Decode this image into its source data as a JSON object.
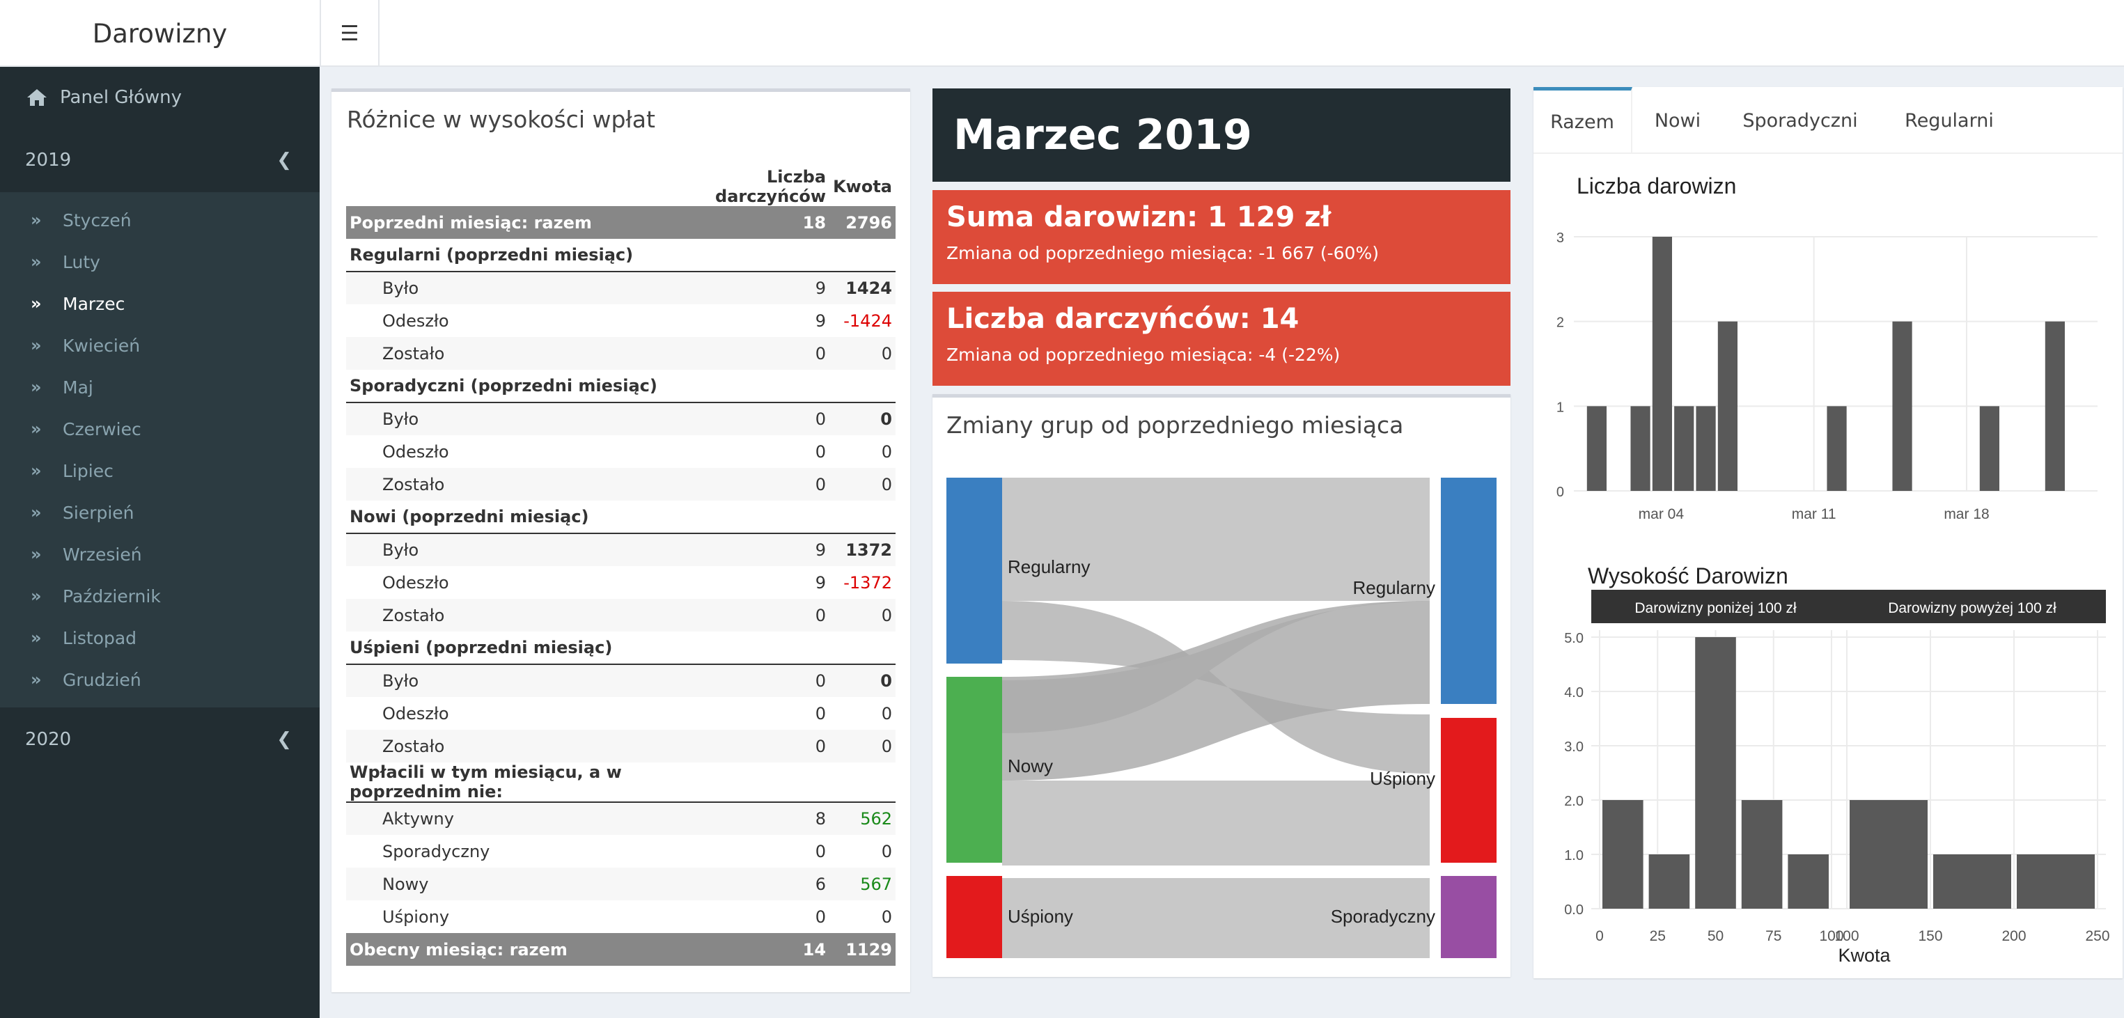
{
  "app": {
    "title": "Darowizny"
  },
  "sidebar": {
    "dashboard": "Panel Główny",
    "years": [
      {
        "label": "2019"
      },
      {
        "label": "2020"
      }
    ],
    "months": [
      "Styczeń",
      "Luty",
      "Marzec",
      "Kwiecień",
      "Maj",
      "Czerwiec",
      "Lipiec",
      "Sierpień",
      "Wrzesień",
      "Październik",
      "Listopad",
      "Grudzień"
    ],
    "active_month": "Marzec"
  },
  "diff_table": {
    "title": "Różnice w wysokości wpłat",
    "col_count": "Liczba darczyńców",
    "col_amount": "Kwota",
    "rows": [
      {
        "type": "tot",
        "label": "Poprzedni miesiąc: razem",
        "count": "18",
        "amount": "2796"
      },
      {
        "type": "grp",
        "label": "Regularni (poprzedni miesiąc)",
        "count": "",
        "amount": ""
      },
      {
        "type": "sub",
        "label": "Było",
        "count": "9",
        "amount": "1424",
        "style": "b"
      },
      {
        "type": "sub",
        "label": "Odeszło",
        "count": "9",
        "amount": "-1424",
        "style": "red"
      },
      {
        "type": "sub",
        "label": "Zostało",
        "count": "0",
        "amount": "0",
        "style": ""
      },
      {
        "type": "grp",
        "label": "Sporadyczni (poprzedni miesiąc)",
        "count": "",
        "amount": ""
      },
      {
        "type": "sub",
        "label": "Było",
        "count": "0",
        "amount": "0",
        "style": "b"
      },
      {
        "type": "sub",
        "label": "Odeszło",
        "count": "0",
        "amount": "0",
        "style": ""
      },
      {
        "type": "sub",
        "label": "Zostało",
        "count": "0",
        "amount": "0",
        "style": ""
      },
      {
        "type": "grp",
        "label": "Nowi (poprzedni miesiąc)",
        "count": "",
        "amount": ""
      },
      {
        "type": "sub",
        "label": "Było",
        "count": "9",
        "amount": "1372",
        "style": "b"
      },
      {
        "type": "sub",
        "label": "Odeszło",
        "count": "9",
        "amount": "-1372",
        "style": "red"
      },
      {
        "type": "sub",
        "label": "Zostało",
        "count": "0",
        "amount": "0",
        "style": ""
      },
      {
        "type": "grp",
        "label": "Uśpieni (poprzedni miesiąc)",
        "count": "",
        "amount": ""
      },
      {
        "type": "sub",
        "label": "Było",
        "count": "0",
        "amount": "0",
        "style": "b"
      },
      {
        "type": "sub",
        "label": "Odeszło",
        "count": "0",
        "amount": "0",
        "style": ""
      },
      {
        "type": "sub",
        "label": "Zostało",
        "count": "0",
        "amount": "0",
        "style": ""
      },
      {
        "type": "grp",
        "label": "Wpłacili w tym miesiącu, a w poprzednim nie:",
        "count": "",
        "amount": ""
      },
      {
        "type": "sub",
        "label": "Aktywny",
        "count": "8",
        "amount": "562",
        "style": "grn"
      },
      {
        "type": "sub",
        "label": "Sporadyczny",
        "count": "0",
        "amount": "0",
        "style": ""
      },
      {
        "type": "sub",
        "label": "Nowy",
        "count": "6",
        "amount": "567",
        "style": "grn"
      },
      {
        "type": "sub",
        "label": "Uśpiony",
        "count": "0",
        "amount": "0",
        "style": ""
      },
      {
        "type": "tot",
        "label": "Obecny miesiąc: razem",
        "count": "14",
        "amount": "1129"
      }
    ]
  },
  "month_title": "Marzec 2019",
  "sum_box": {
    "title": "Suma darowizn: 1 129 zł",
    "change": "Zmiana od poprzedniego miesiąca: -1 667 (-60%)"
  },
  "count_box": {
    "title": "Liczba darczyńców: 14",
    "change": "Zmiana od poprzedniego miesiąca: -4 (-22%)"
  },
  "sankey": {
    "title": "Zmiany grup od poprzedniego miesiąca",
    "left": [
      {
        "name": "Regularny",
        "color": "#3a7fc1"
      },
      {
        "name": "Nowy",
        "color": "#4caf50"
      },
      {
        "name": "Uśpiony",
        "color": "#e31a1c"
      }
    ],
    "right": [
      {
        "name": "Regularny",
        "color": "#3a7fc1"
      },
      {
        "name": "Uśpiony",
        "color": "#e31a1c"
      },
      {
        "name": "Sporadyczny",
        "color": "#984ea3"
      }
    ]
  },
  "tabs": [
    "Razem",
    "Nowi",
    "Sporadyczni",
    "Regularni"
  ],
  "active_tab": "Razem",
  "chart_data": [
    {
      "type": "bar",
      "title": "Liczba darowizn",
      "x": [
        "2019-03-01",
        "2019-03-03",
        "2019-03-04",
        "2019-03-05",
        "2019-03-06",
        "2019-03-07",
        "2019-03-12",
        "2019-03-15",
        "2019-03-19",
        "2019-03-22"
      ],
      "values": [
        1,
        1,
        3,
        1,
        1,
        2,
        1,
        2,
        1,
        2
      ],
      "xticks": [
        "mar 04",
        "mar 11",
        "mar 18"
      ],
      "yticks": [
        0,
        1,
        2,
        3
      ],
      "ylim": [
        0,
        3
      ],
      "grid": true,
      "color": "#595959"
    },
    {
      "type": "bar",
      "title": "Wysokość Darowizn",
      "xlabel": "Kwota",
      "panels": [
        {
          "label": "Darowizny poniżej 100 zł",
          "bins": [
            0,
            20,
            40,
            60,
            80,
            100
          ],
          "values": [
            2,
            1,
            5,
            2,
            1
          ],
          "xticks": [
            "0",
            "25",
            "50",
            "75",
            "100"
          ],
          "xlim": [
            0,
            100
          ]
        },
        {
          "label": "Darowizny powyżej 100 zł",
          "bins": [
            100,
            150,
            200,
            250
          ],
          "values": [
            2,
            1,
            1
          ],
          "xticks": [
            "100",
            "150",
            "200",
            "250"
          ],
          "xlim": [
            100,
            250
          ]
        }
      ],
      "yticks": [
        "0.0",
        "1.0",
        "2.0",
        "3.0",
        "4.0",
        "5.0"
      ],
      "ylim": [
        0,
        5
      ],
      "color": "#595959"
    }
  ]
}
